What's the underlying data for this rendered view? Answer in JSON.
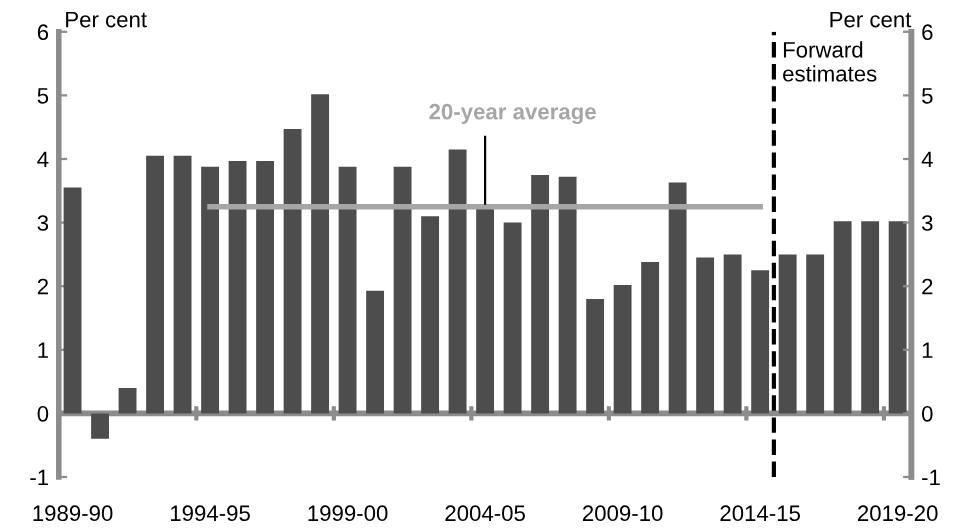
{
  "chart_data": {
    "type": "bar",
    "ylabel": "Per cent",
    "y2label": "Per cent",
    "categories": [
      "1989-90",
      null,
      null,
      null,
      null,
      "1994-95",
      null,
      null,
      null,
      null,
      "1999-00",
      null,
      null,
      null,
      null,
      "2004-05",
      null,
      null,
      null,
      null,
      "2009-10",
      null,
      null,
      null,
      null,
      "2014-15",
      null,
      null,
      null,
      null,
      "2019-20"
    ],
    "series": [
      {
        "color": "#4d4d4d",
        "values": [
          3.55,
          -0.4,
          0.4,
          4.05,
          4.05,
          3.88,
          3.97,
          3.97,
          4.47,
          5.02,
          3.88,
          1.93,
          3.88,
          3.1,
          4.15,
          3.22,
          3.0,
          3.75,
          3.72,
          1.8,
          2.02,
          2.38,
          3.63,
          2.45,
          2.5,
          2.25,
          2.5,
          2.5,
          3.02,
          3.02,
          3.02
        ]
      },
      {
        "type": "line",
        "name": "20-year average",
        "color": "#a6a6a6",
        "values": [
          null,
          null,
          null,
          null,
          null,
          3.25,
          3.25,
          3.25,
          3.25,
          3.25,
          3.25,
          3.25,
          3.25,
          3.25,
          3.25,
          3.25,
          3.25,
          3.25,
          3.25,
          3.25,
          3.25,
          3.25,
          3.25,
          3.25,
          3.25,
          3.25,
          null,
          null,
          null,
          null,
          null
        ]
      }
    ],
    "ylim": [
      -1,
      6
    ],
    "yticks": [
      -1,
      0,
      1,
      2,
      3,
      4,
      5,
      6
    ],
    "y2lim": [
      -1,
      6
    ],
    "y2ticks": [
      -1,
      0,
      1,
      2,
      3,
      4,
      5,
      6
    ],
    "ref_lines": [
      {
        "axis": "x",
        "value": "2014-15",
        "label": "Forward\nestimates",
        "color": "#000000",
        "line_style": "dashed"
      }
    ],
    "grid": false,
    "legend": false
  }
}
